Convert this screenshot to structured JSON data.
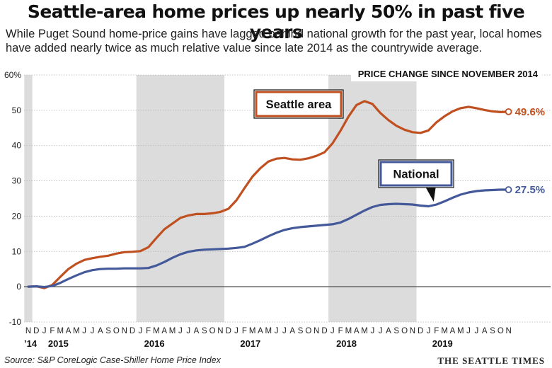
{
  "title": "Seattle-area home prices up nearly 50% in past five years",
  "subtitle": "While Puget Sound home-price gains have lagged behind national growth for the past year, local homes have added nearly twice as much relative value since late 2014 as the countrywide average.",
  "source": "Source: S&P CoreLogic Case-Shiller Home Price Index",
  "credit": "THE SEATTLE TIMES",
  "colors": {
    "seattle": "#c0501f",
    "national": "#44599a",
    "shade": "#dcdcdc"
  },
  "chart_data": {
    "type": "line",
    "title": "PRICE CHANGE SINCE NOVEMBER 2014",
    "ylim": [
      -10,
      60
    ],
    "yticks": [
      -10,
      0,
      10,
      20,
      30,
      40,
      50,
      60
    ],
    "ytick_labels": [
      "-10",
      "0",
      "10",
      "20",
      "30",
      "40",
      "50",
      "60%"
    ],
    "month_labels": [
      "N",
      "D",
      "J",
      "F",
      "M",
      "A",
      "M",
      "J",
      "J",
      "A",
      "S",
      "O",
      "N",
      "D",
      "J",
      "F",
      "M",
      "A",
      "M",
      "J",
      "J",
      "A",
      "S",
      "O",
      "N",
      "D",
      "J",
      "F",
      "M",
      "A",
      "M",
      "J",
      "J",
      "A",
      "S",
      "O",
      "N",
      "D",
      "J",
      "F",
      "M",
      "A",
      "M",
      "J",
      "J",
      "A",
      "S",
      "O",
      "N",
      "D",
      "J",
      "F",
      "M",
      "A",
      "M",
      "J",
      "J",
      "A",
      "S",
      "O",
      "N"
    ],
    "year_labels": [
      {
        "label": "’14",
        "index": 0
      },
      {
        "label": "2015",
        "index": 3
      },
      {
        "label": "2016",
        "index": 15
      },
      {
        "label": "2017",
        "index": 27
      },
      {
        "label": "2018",
        "index": 39
      },
      {
        "label": "2019",
        "index": 51
      }
    ],
    "shaded_years": [
      {
        "label": "2014",
        "start": 0,
        "end": 1
      },
      {
        "label": "2016",
        "start": 14,
        "end": 25
      },
      {
        "label": "2018",
        "start": 38,
        "end": 49
      }
    ],
    "series": [
      {
        "name": "Seattle area",
        "end_label": "49.6%",
        "values": [
          0,
          0.1,
          -0.4,
          0.5,
          2.8,
          5.0,
          6.5,
          7.6,
          8.1,
          8.5,
          8.8,
          9.4,
          9.8,
          9.9,
          10.1,
          11.2,
          13.8,
          16.3,
          17.9,
          19.5,
          20.2,
          20.6,
          20.6,
          20.8,
          21.2,
          22.1,
          24.5,
          27.9,
          31.2,
          33.6,
          35.5,
          36.3,
          36.5,
          36.1,
          36.0,
          36.4,
          37.1,
          38.1,
          40.6,
          44.2,
          48.2,
          51.5,
          52.6,
          51.8,
          49.2,
          47.2,
          45.6,
          44.5,
          43.8,
          43.6,
          44.3,
          46.6,
          48.3,
          49.7,
          50.6,
          51.0,
          50.6,
          50.1,
          49.7,
          49.5,
          49.6
        ]
      },
      {
        "name": "National",
        "end_label": "27.5%",
        "values": [
          0,
          0.1,
          -0.1,
          0.2,
          1.1,
          2.2,
          3.2,
          4.1,
          4.7,
          5.0,
          5.1,
          5.1,
          5.2,
          5.2,
          5.2,
          5.3,
          6.0,
          7.0,
          8.2,
          9.2,
          9.9,
          10.3,
          10.5,
          10.6,
          10.7,
          10.8,
          11.0,
          11.3,
          12.2,
          13.2,
          14.3,
          15.3,
          16.1,
          16.6,
          16.9,
          17.1,
          17.3,
          17.5,
          17.7,
          18.2,
          19.2,
          20.4,
          21.6,
          22.6,
          23.2,
          23.4,
          23.5,
          23.4,
          23.3,
          23.0,
          22.8,
          23.3,
          24.2,
          25.2,
          26.1,
          26.7,
          27.1,
          27.3,
          27.4,
          27.5,
          27.5
        ]
      }
    ]
  }
}
